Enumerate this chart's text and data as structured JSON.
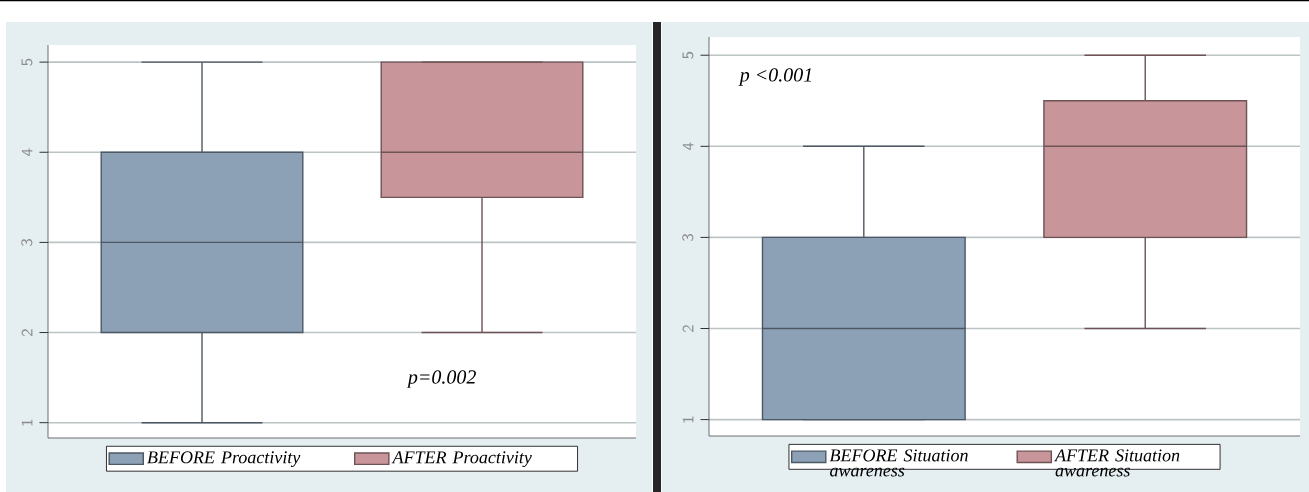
{
  "chart_data": [
    {
      "type": "box",
      "categories": [
        null
      ],
      "ylim": [
        0.83,
        5.19
      ],
      "yticks": [
        1,
        2,
        3,
        4,
        5
      ],
      "grid": "y",
      "legend": "bottom",
      "annotations": [
        "*p=0.002*"
      ],
      "series": [
        {
          "name": "*BEFORE Proactivity*",
          "color": "#8ca0b6",
          "boxes": [
            {
              "low": 1,
              "q1": 2,
              "median": 3,
              "q3": 4,
              "high": 5
            }
          ]
        },
        {
          "name": "*AFTER Proactivity*",
          "color": "#c8969a",
          "boxes": [
            {
              "low": 2,
              "q1": 3.5,
              "median": 4,
              "q3": 5,
              "high": 5
            }
          ]
        }
      ]
    },
    {
      "type": "box",
      "categories": [
        null
      ],
      "ylim": [
        0.82,
        5.2
      ],
      "yticks": [
        1,
        2,
        3,
        4,
        5
      ],
      "grid": "y",
      "legend": "bottom",
      "annotations": [
        "*p <0.001*"
      ],
      "series": [
        {
          "name": "*BEFORE Situation awareness*",
          "color": "#8ca0b6",
          "boxes": [
            {
              "low": 1,
              "q1": 1,
              "median": 2,
              "q3": 3,
              "high": 4
            }
          ]
        },
        {
          "name": "*AFTER Situation awareness*",
          "color": "#c8969a",
          "boxes": [
            {
              "low": 2,
              "q1": 3,
              "median": 4,
              "q3": 4.5,
              "high": 5
            }
          ]
        }
      ]
    }
  ]
}
